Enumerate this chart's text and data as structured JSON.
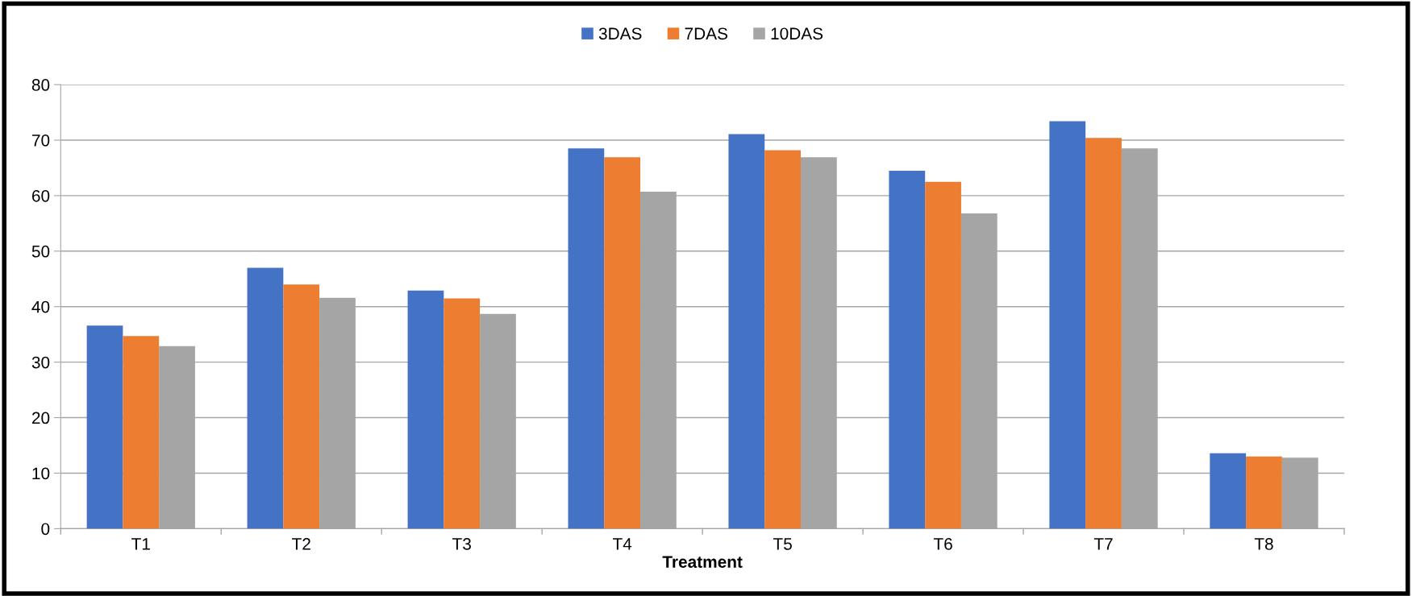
{
  "chart_data": {
    "type": "bar",
    "xlabel": "Treatment",
    "categories": [
      "T1",
      "T2",
      "T3",
      "T4",
      "T5",
      "T6",
      "T7",
      "T8"
    ],
    "series": [
      {
        "name": "3DAS",
        "color": "#4472c4",
        "values": [
          36.6,
          47.0,
          42.9,
          68.5,
          71.1,
          64.5,
          73.4,
          13.6
        ]
      },
      {
        "name": "7DAS",
        "color": "#ed7d31",
        "values": [
          34.7,
          44.0,
          41.5,
          66.9,
          68.2,
          62.5,
          70.4,
          13.0
        ]
      },
      {
        "name": "10DAS",
        "color": "#a5a5a5",
        "values": [
          32.9,
          41.6,
          38.7,
          60.7,
          66.9,
          56.8,
          68.5,
          12.8
        ]
      }
    ],
    "ylim": [
      0,
      80
    ],
    "yticks": [
      0,
      10,
      20,
      30,
      40,
      50,
      60,
      70,
      80
    ],
    "grid": "y",
    "legend": "top"
  }
}
